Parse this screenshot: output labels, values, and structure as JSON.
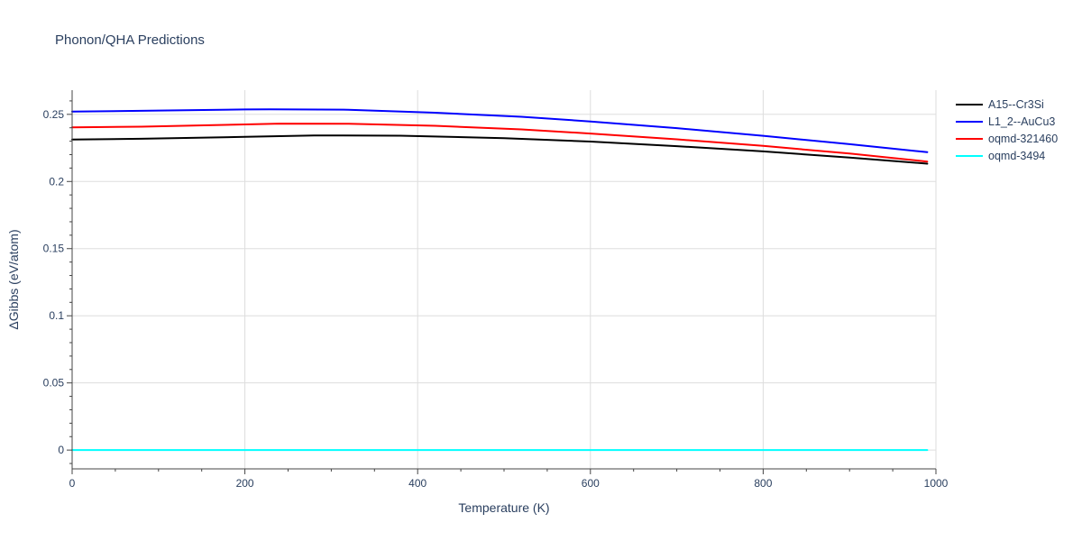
{
  "chart_data": {
    "type": "line",
    "title": "Phonon/QHA Predictions",
    "xlabel": "Temperature (K)",
    "ylabel": "ΔGibbs (eV/atom)",
    "xlim": [
      0,
      1000
    ],
    "ylim": [
      -0.014,
      0.268
    ],
    "xticks": [
      0,
      200,
      400,
      600,
      800,
      1000
    ],
    "xtick_labels": [
      "0",
      "200",
      "400",
      "600",
      "800",
      "1000"
    ],
    "yticks": [
      0,
      0.05,
      0.1,
      0.15,
      0.2,
      0.25
    ],
    "ytick_labels": [
      "0",
      "0.05",
      "0.1",
      "0.15",
      "0.2",
      "0.25"
    ],
    "grid": true,
    "legend_position": "top-right",
    "series": [
      {
        "name": "A15--Cr3Si",
        "color": "#000000",
        "x": [
          0,
          80,
          200,
          280,
          380,
          500,
          600,
          700,
          800,
          900,
          990
        ],
        "y": [
          0.2313,
          0.2318,
          0.2332,
          0.2343,
          0.2341,
          0.2323,
          0.2297,
          0.2263,
          0.2224,
          0.2178,
          0.2133
        ]
      },
      {
        "name": "L1_2--AuCu3",
        "color": "#0000ff",
        "x": [
          0,
          80,
          200,
          230,
          320,
          420,
          520,
          600,
          700,
          800,
          900,
          990
        ],
        "y": [
          0.2521,
          0.2526,
          0.2536,
          0.2537,
          0.2534,
          0.2512,
          0.2482,
          0.2447,
          0.2397,
          0.234,
          0.2278,
          0.2218
        ]
      },
      {
        "name": "oqmd-321460",
        "color": "#ff0000",
        "x": [
          0,
          80,
          200,
          240,
          320,
          420,
          520,
          600,
          700,
          800,
          900,
          990
        ],
        "y": [
          0.2403,
          0.2408,
          0.2425,
          0.2431,
          0.243,
          0.2415,
          0.2388,
          0.2357,
          0.2314,
          0.2265,
          0.2208,
          0.2148
        ]
      },
      {
        "name": "oqmd-3494",
        "color": "#00ffff",
        "x": [
          0,
          200,
          400,
          600,
          800,
          990
        ],
        "y": [
          0,
          0,
          0,
          0,
          0,
          0
        ]
      }
    ]
  }
}
